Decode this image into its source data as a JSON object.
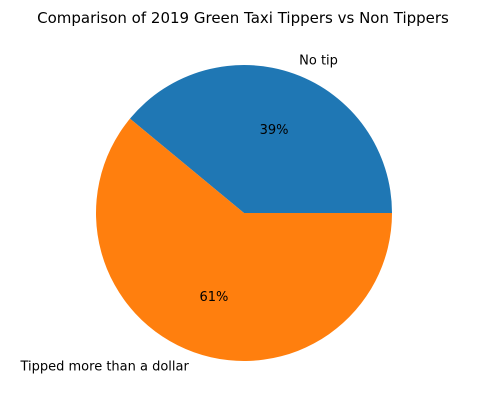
{
  "chart_data": {
    "type": "pie",
    "title": "Comparison of 2019 Green Taxi Tippers vs Non Tippers",
    "slices": [
      {
        "label": "No tip",
        "value": 39,
        "pct_label": "39%",
        "color": "#1f77b4"
      },
      {
        "label": "Tipped more than a dollar",
        "value": 61,
        "pct_label": "61%",
        "color": "#ff7f0e"
      }
    ],
    "start_angle_deg": 0,
    "direction": "counterclockwise"
  }
}
